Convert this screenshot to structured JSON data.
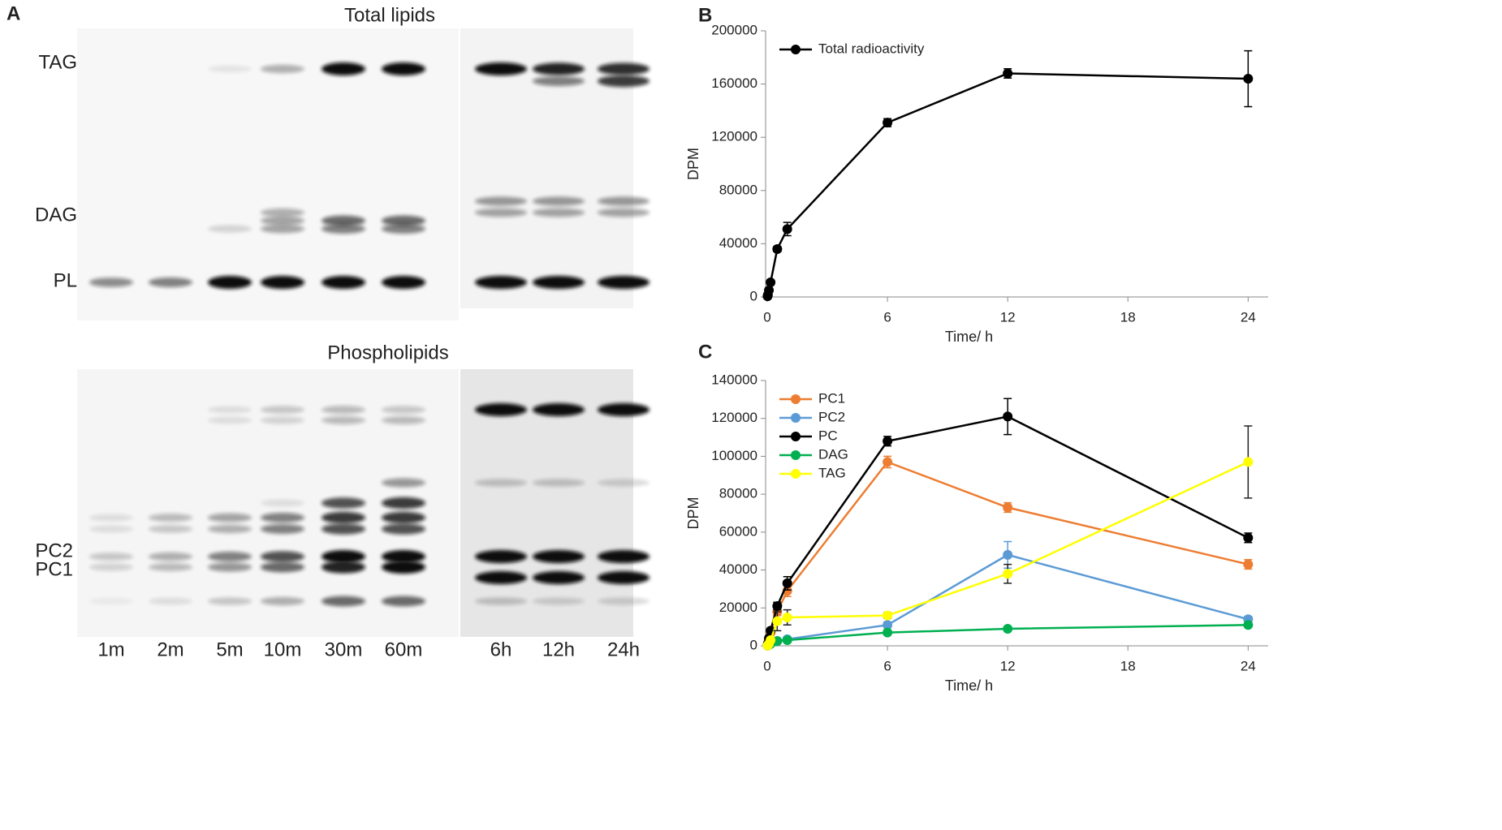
{
  "panel_a": {
    "letter": "A",
    "top_title": "Total lipids",
    "top_bands": [
      "TAG",
      "DAG",
      "PL"
    ],
    "bottom_title": "Phospholipids",
    "bottom_bands": [
      "PC2",
      "PC1"
    ],
    "lanes": [
      "1m",
      "2m",
      "5m",
      "10m",
      "30m",
      "60m",
      "6h",
      "12h",
      "24h"
    ]
  },
  "chart_data": [
    {
      "type": "line",
      "letter": "B",
      "ylabel": "DPM",
      "xlabel": "Time/ h",
      "xlim": [
        0,
        25
      ],
      "xticks": [
        0,
        6,
        12,
        18,
        24
      ],
      "ylim": [
        0,
        200000
      ],
      "yticks": [
        0,
        40000,
        80000,
        120000,
        160000,
        200000
      ],
      "legend": "upper left",
      "x": [
        0.0167,
        0.0333,
        0.0833,
        0.1667,
        0.5,
        1,
        6,
        12,
        24
      ],
      "series": [
        {
          "name": "Total radioactivity",
          "color": "#000000",
          "values": [
            500,
            1500,
            5000,
            11000,
            36000,
            51000,
            131000,
            168000,
            164000
          ],
          "errors": [
            200,
            300,
            500,
            1000,
            2000,
            5000,
            3000,
            3500,
            21000
          ]
        }
      ]
    },
    {
      "type": "line",
      "letter": "C",
      "ylabel": "DPM",
      "xlabel": "Time/ h",
      "xlim": [
        0,
        25
      ],
      "xticks": [
        0,
        6,
        12,
        18,
        24
      ],
      "ylim": [
        0,
        140000
      ],
      "yticks": [
        0,
        20000,
        40000,
        60000,
        80000,
        100000,
        120000,
        140000
      ],
      "legend": "upper left",
      "x": [
        0.0167,
        0.0333,
        0.0833,
        0.1667,
        0.5,
        1,
        6,
        12,
        24
      ],
      "series": [
        {
          "name": "PC1",
          "color": "#ed7d31",
          "values": [
            300,
            800,
            3000,
            7000,
            18000,
            29000,
            97000,
            73000,
            43000
          ],
          "errors": [
            100,
            200,
            500,
            1000,
            2000,
            3000,
            3000,
            2500,
            2500
          ]
        },
        {
          "name": "PC2",
          "color": "#5b9bd5",
          "values": [
            100,
            300,
            800,
            1500,
            2500,
            3500,
            11000,
            48000,
            14000
          ],
          "errors": [
            50,
            100,
            200,
            300,
            500,
            800,
            1500,
            7000,
            1500
          ]
        },
        {
          "name": "PC",
          "color": "#000000",
          "values": [
            400,
            1200,
            4000,
            8000,
            21000,
            33000,
            108000,
            121000,
            57000
          ],
          "errors": [
            100,
            300,
            600,
            1000,
            2000,
            3500,
            2500,
            9500,
            2500
          ]
        },
        {
          "name": "DAG",
          "color": "#00b050",
          "values": [
            100,
            200,
            500,
            1000,
            2500,
            3000,
            7000,
            9000,
            11000
          ],
          "errors": [
            50,
            50,
            100,
            200,
            300,
            300,
            500,
            500,
            800
          ]
        },
        {
          "name": "TAG",
          "color": "#ffff00",
          "values": [
            100,
            300,
            1000,
            3000,
            13000,
            15000,
            16000,
            38000,
            97000
          ],
          "errors": [
            50,
            100,
            300,
            800,
            5000,
            4000,
            1500,
            5000,
            19000
          ]
        }
      ]
    }
  ]
}
